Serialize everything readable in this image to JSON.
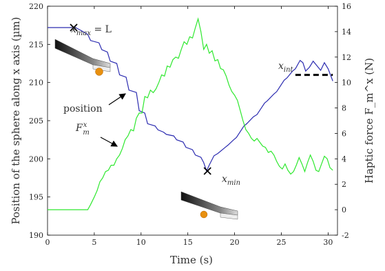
{
  "chart_data": {
    "type": "line",
    "xlabel": "Time (s)",
    "ylabel_left": "Position of the sphere along x axis (µm)",
    "ylabel_right": "Haptic force F_m^x (N)",
    "xlim": [
      0,
      31
    ],
    "ylim_left": [
      190,
      220
    ],
    "ylim_right": [
      -2,
      16
    ],
    "x_ticks": [
      "0",
      "5",
      "10",
      "15",
      "20",
      "25",
      "30"
    ],
    "y_ticks_left": [
      "190",
      "195",
      "200",
      "205",
      "210",
      "215",
      "220"
    ],
    "y_ticks_right": [
      "-2",
      "0",
      "2",
      "4",
      "6",
      "8",
      "10",
      "12",
      "14",
      "16"
    ],
    "grid": false,
    "series": [
      {
        "axis": "left",
        "color": "#2b2bb0",
        "x": [
          0,
          3.0,
          3.6,
          4.3,
          4.6,
          5.5,
          5.8,
          6.4,
          6.7,
          7.4,
          7.7,
          8.4,
          8.7,
          9.5,
          9.8,
          10.4,
          10.7,
          11.5,
          11.8,
          12.4,
          12.7,
          13.5,
          13.8,
          14.5,
          14.8,
          15.5,
          15.8,
          16.4,
          16.7,
          17.0,
          17.3,
          17.8,
          18.2,
          19.0,
          19.3,
          19.9,
          20.2,
          21.0,
          21.3,
          22.0,
          22.4,
          23.2,
          23.5,
          24.2,
          24.5,
          25.3,
          25.6,
          26.2,
          26.5,
          27.0,
          27.3,
          27.6,
          28.0,
          28.4,
          28.8,
          29.2,
          29.6,
          30.0,
          30.5
        ],
        "y": [
          217.2,
          217.2,
          216.8,
          216.3,
          215.5,
          215.2,
          214.3,
          214.0,
          212.8,
          212.5,
          211.0,
          210.7,
          209.0,
          208.7,
          206.3,
          206.0,
          204.6,
          204.3,
          203.8,
          203.5,
          203.2,
          203.0,
          202.5,
          202.2,
          201.5,
          201.2,
          200.5,
          200.2,
          199.5,
          198.4,
          199.2,
          200.4,
          200.7,
          201.5,
          201.8,
          202.5,
          202.8,
          204.3,
          204.6,
          205.5,
          205.8,
          207.3,
          207.6,
          208.5,
          208.8,
          210.3,
          210.6,
          211.5,
          211.8,
          212.9,
          212.6,
          211.5,
          212.0,
          212.8,
          212.2,
          211.6,
          212.6,
          211.8,
          210.2
        ]
      },
      {
        "axis": "right",
        "color": "#2ee82e",
        "x": [
          0,
          4.3,
          4.6,
          5.0,
          5.3,
          5.6,
          5.9,
          6.2,
          6.5,
          6.8,
          7.1,
          7.4,
          7.7,
          8.0,
          8.3,
          8.6,
          8.9,
          9.2,
          9.5,
          9.8,
          10.1,
          10.4,
          10.7,
          11.0,
          11.3,
          11.6,
          11.9,
          12.2,
          12.5,
          12.8,
          13.1,
          13.4,
          13.7,
          14.0,
          14.3,
          14.6,
          14.9,
          15.2,
          15.5,
          15.8,
          16.1,
          16.4,
          16.7,
          17.0,
          17.3,
          17.6,
          17.9,
          18.2,
          18.5,
          18.8,
          19.1,
          19.4,
          19.7,
          20.0,
          20.3,
          20.6,
          20.9,
          21.2,
          21.5,
          21.8,
          22.1,
          22.4,
          22.7,
          23.0,
          23.3,
          23.6,
          23.9,
          24.2,
          24.5,
          24.8,
          25.1,
          25.4,
          25.7,
          26.0,
          26.3,
          26.6,
          26.9,
          27.2,
          27.5,
          27.8,
          28.1,
          28.4,
          28.7,
          29.0,
          29.3,
          29.6,
          29.9,
          30.2,
          30.5
        ],
        "y": [
          0.0,
          0.0,
          0.4,
          1.0,
          1.5,
          2.2,
          2.5,
          3.0,
          3.1,
          3.5,
          3.5,
          4.0,
          4.3,
          4.8,
          5.5,
          5.8,
          6.3,
          6.2,
          7.2,
          7.6,
          7.6,
          8.9,
          8.8,
          9.4,
          9.2,
          9.5,
          10.0,
          10.6,
          10.5,
          11.3,
          11.2,
          11.8,
          12.0,
          11.9,
          12.6,
          13.2,
          13.0,
          13.6,
          13.5,
          14.3,
          15.0,
          14.0,
          12.6,
          13.0,
          12.3,
          12.5,
          11.7,
          11.8,
          11.1,
          11.0,
          10.5,
          9.8,
          9.3,
          9.0,
          8.6,
          7.8,
          7.0,
          6.3,
          6.0,
          5.6,
          5.4,
          5.6,
          5.3,
          5.0,
          4.9,
          4.5,
          4.6,
          4.3,
          3.8,
          3.4,
          3.2,
          3.6,
          3.1,
          2.8,
          3.0,
          3.5,
          4.1,
          3.6,
          3.0,
          3.7,
          4.3,
          3.8,
          3.1,
          3.0,
          3.6,
          4.2,
          4.0,
          3.3,
          3.1
        ]
      }
    ],
    "annotations": {
      "xmax_label": "x",
      "xmax_sub": "max",
      "xmax_eq": " = L",
      "xmin_label": "x",
      "xmin_sub": "min",
      "xint_label": "x",
      "xint_sub": "int",
      "position_label": "position",
      "force_label": "F",
      "force_sup": "x",
      "force_sub": "m",
      "xmax_marker": {
        "x": 2.8,
        "y": 217.2
      },
      "xmin_marker": {
        "x": 17.1,
        "y": 198.4
      },
      "xint_line": {
        "x_start": 26.5,
        "x_end": 30.5,
        "y": 211.0
      }
    }
  }
}
